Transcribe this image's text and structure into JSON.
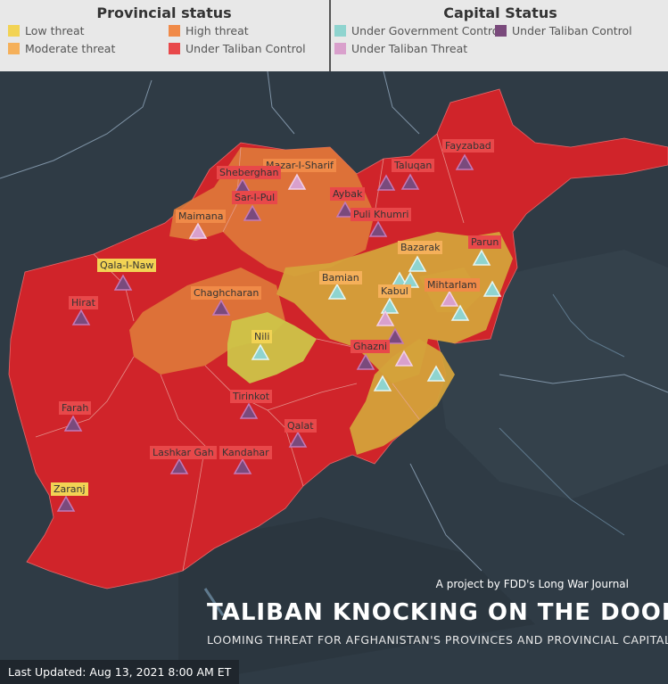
{
  "legend": {
    "provincial_title": "Provincial status",
    "capital_title": "Capital Status",
    "provincial_items": [
      {
        "label": "Low threat",
        "color": "#f2d354"
      },
      {
        "label": "High threat",
        "color": "#f08a48"
      },
      {
        "label": "Moderate threat",
        "color": "#f5b05a"
      },
      {
        "label": "Under Taliban Control",
        "color": "#e8484a"
      }
    ],
    "capital_items": [
      {
        "label": "Under Government Control",
        "color": "#8fd4cf"
      },
      {
        "label": "Under Taliban Control",
        "color": "#7a4a7c"
      },
      {
        "label": "Under Taliban Threat",
        "color": "#d9a0cc"
      }
    ]
  },
  "colors": {
    "taliban_region": "#d0242a",
    "high_region": "#de7a3a",
    "moderate_region": "#d4a23a",
    "low_region": "#cdc448",
    "label_taliban_bg": "#e8484a",
    "label_high_bg": "#f08a48",
    "label_moderate_bg": "#f5b05a",
    "label_low_bg": "#f2d354",
    "marker_gov": "#8fd4cf",
    "marker_taliban": "#7a4a7c",
    "marker_threat": "#d9a0cc"
  },
  "cities": [
    {
      "name": "Fayzabad",
      "label_status": "taliban",
      "capital_status": "taliban"
    },
    {
      "name": "Taluqan",
      "label_status": "taliban",
      "capital_status": "taliban"
    },
    {
      "name": "Mazar-I-Sharif",
      "label_status": "high",
      "capital_status": "threat"
    },
    {
      "name": "Sheberghan",
      "label_status": "taliban",
      "capital_status": "taliban"
    },
    {
      "name": "Sar-I-Pul",
      "label_status": "taliban",
      "capital_status": "taliban"
    },
    {
      "name": "Aybak",
      "label_status": "taliban",
      "capital_status": "taliban"
    },
    {
      "name": "Puli Khumri",
      "label_status": "taliban",
      "capital_status": "taliban"
    },
    {
      "name": "Maimana",
      "label_status": "high",
      "capital_status": "threat"
    },
    {
      "name": "Parun",
      "label_status": "taliban",
      "capital_status": "gov"
    },
    {
      "name": "Bazarak",
      "label_status": "moderate",
      "capital_status": "gov"
    },
    {
      "name": "Qala-I-Naw",
      "label_status": "low",
      "capital_status": "taliban"
    },
    {
      "name": "Bamian",
      "label_status": "moderate",
      "capital_status": "gov"
    },
    {
      "name": "Kabul",
      "label_status": "moderate",
      "capital_status": "gov"
    },
    {
      "name": "Mihtarlam",
      "label_status": "high",
      "capital_status": "threat"
    },
    {
      "name": "Hirat",
      "label_status": "taliban",
      "capital_status": "taliban"
    },
    {
      "name": "Chaghcharan",
      "label_status": "high",
      "capital_status": "taliban"
    },
    {
      "name": "Nili",
      "label_status": "low",
      "capital_status": "gov"
    },
    {
      "name": "Ghazni",
      "label_status": "taliban",
      "capital_status": "taliban"
    },
    {
      "name": "Tirinkot",
      "label_status": "taliban",
      "capital_status": "taliban"
    },
    {
      "name": "Farah",
      "label_status": "taliban",
      "capital_status": "taliban"
    },
    {
      "name": "Qalat",
      "label_status": "taliban",
      "capital_status": "taliban"
    },
    {
      "name": "Lashkar Gah",
      "label_status": "taliban",
      "capital_status": "taliban"
    },
    {
      "name": "Kandahar",
      "label_status": "taliban",
      "capital_status": "taliban"
    },
    {
      "name": "Zaranj",
      "label_status": "low",
      "capital_status": "taliban"
    }
  ],
  "extra_markers": [
    {
      "capital_status": "gov"
    },
    {
      "capital_status": "gov"
    },
    {
      "capital_status": "gov"
    },
    {
      "capital_status": "threat"
    },
    {
      "capital_status": "taliban"
    },
    {
      "capital_status": "threat"
    },
    {
      "capital_status": "gov"
    },
    {
      "capital_status": "gov"
    },
    {
      "capital_status": "gov"
    },
    {
      "capital_status": "taliban"
    }
  ],
  "credit": "A project by FDD's Long War Journal",
  "title": "TALIBAN KNOCKING ON THE  DOOR",
  "subtitle": "LOOMING THREAT FOR AFGHANISTAN'S PROVINCES AND PROVINCIAL CAPITALS",
  "last_updated": "Last Updated: Aug 13, 2021 8:00 AM ET"
}
